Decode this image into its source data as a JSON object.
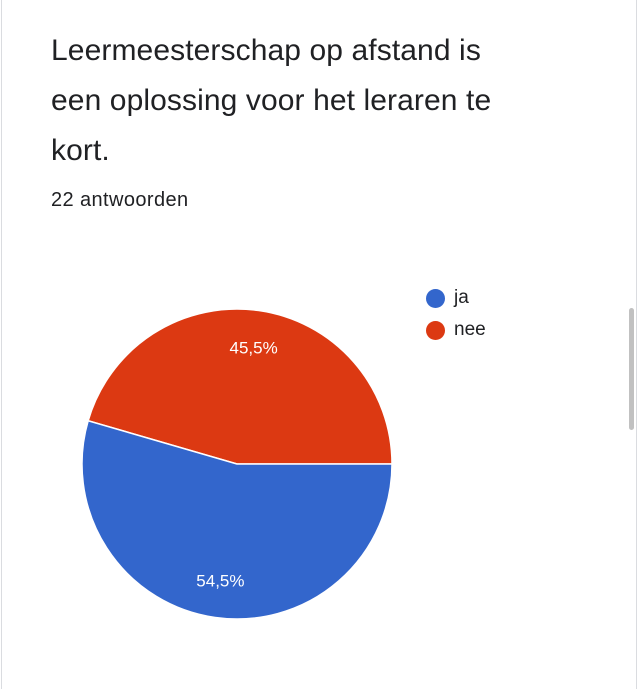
{
  "question": {
    "title": "Leermeesterschap op afstand is een oplossing voor het leraren te kort.",
    "response_count": "22 antwoorden"
  },
  "colors": {
    "ja": "#3366cc",
    "nee": "#dc3912"
  },
  "chart_data": {
    "type": "pie",
    "categories": [
      "ja",
      "nee"
    ],
    "values": [
      54.5,
      45.5
    ],
    "labels": [
      "54,5%",
      "45,5%"
    ],
    "colors": [
      "#3366cc",
      "#dc3912"
    ],
    "legend_position": "top-right",
    "start": "3 o'clock, counter-clockwise order: nee then ja"
  },
  "legend": {
    "items": [
      {
        "label": "ja",
        "color": "#3366cc"
      },
      {
        "label": "nee",
        "color": "#dc3912"
      }
    ]
  }
}
